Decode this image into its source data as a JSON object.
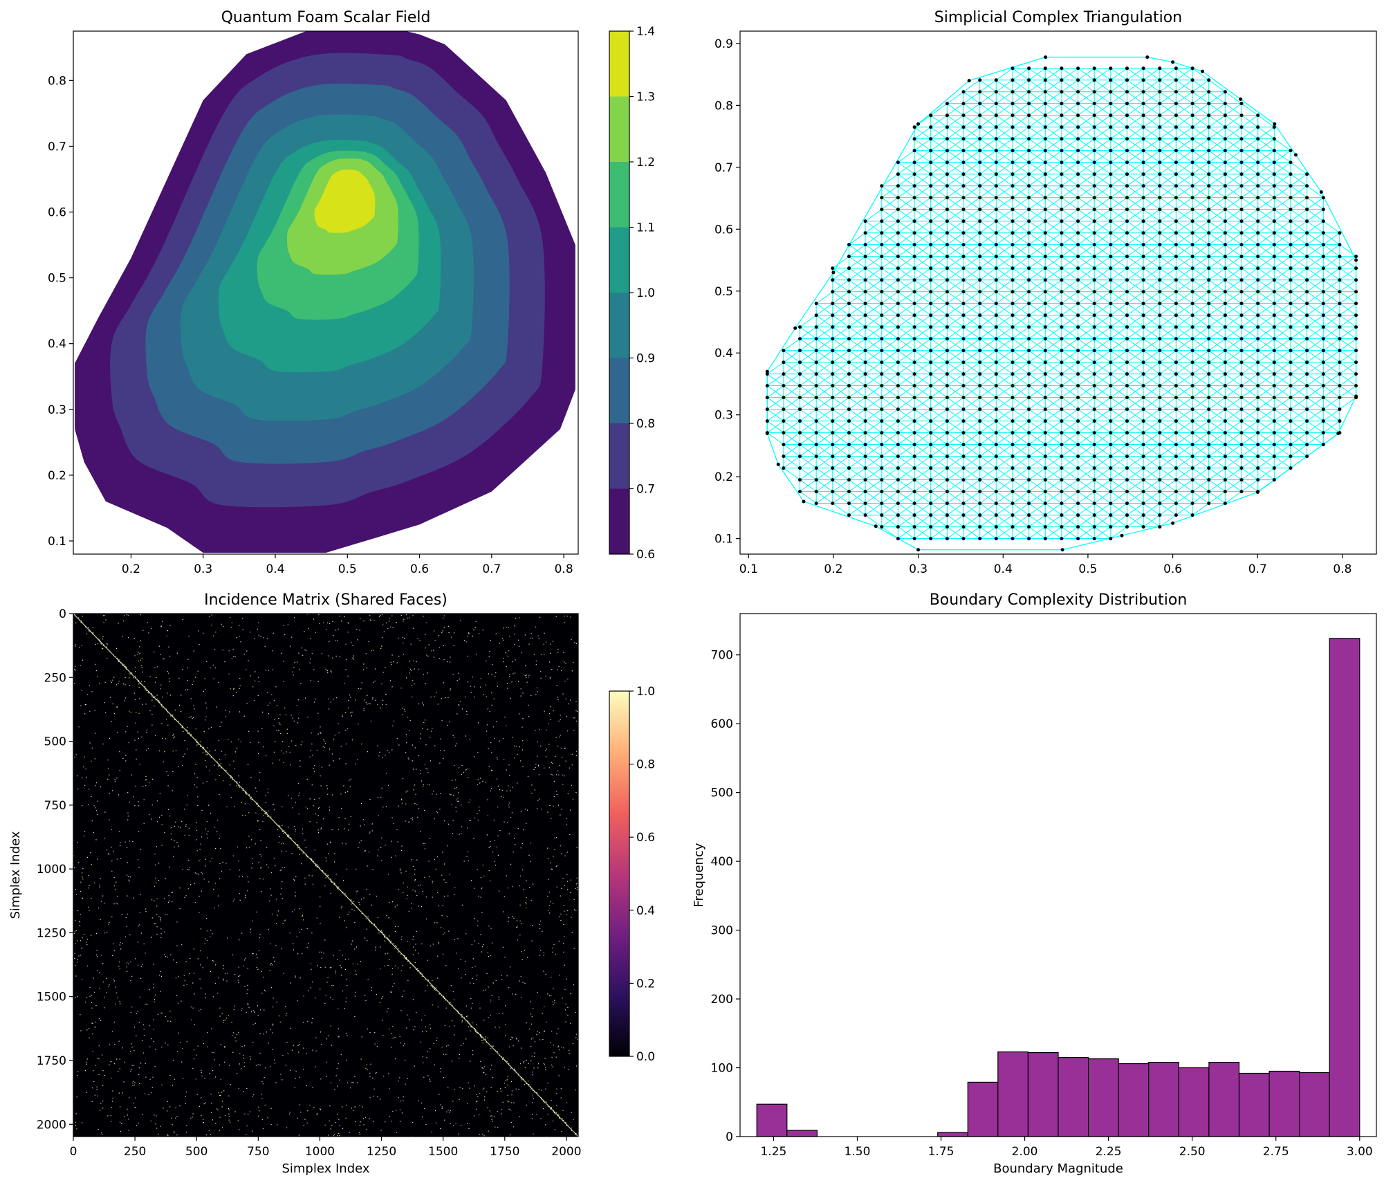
{
  "chart_data": [
    {
      "type": "contour",
      "title": "Quantum Foam Scalar Field",
      "xlabel": "",
      "ylabel": "",
      "xlim": [
        0.12,
        0.82
      ],
      "ylim": [
        0.08,
        0.875
      ],
      "x_ticks": [
        "0.2",
        "0.3",
        "0.4",
        "0.5",
        "0.6",
        "0.7",
        "0.8"
      ],
      "y_ticks": [
        "0.1",
        "0.2",
        "0.3",
        "0.4",
        "0.5",
        "0.6",
        "0.7",
        "0.8"
      ],
      "levels": [
        0.6,
        0.7,
        0.8,
        0.9,
        1.0,
        1.1,
        1.2,
        1.3,
        1.4
      ],
      "colorbar_ticks": [
        "0.6",
        "0.7",
        "0.8",
        "0.9",
        "1.0",
        "1.1",
        "1.2",
        "1.3",
        "1.4"
      ],
      "colors": [
        "#46126d",
        "#443b84",
        "#31668e",
        "#277f8e",
        "#1f9d89",
        "#3dbc73",
        "#84d44b",
        "#d7e219"
      ],
      "peak": {
        "x": 0.5,
        "y": 0.635,
        "value": 1.35
      },
      "colormap": "viridis"
    },
    {
      "type": "scatter",
      "title": "Simplicial Complex Triangulation",
      "xlabel": "",
      "ylabel": "",
      "xlim": [
        0.09,
        0.84
      ],
      "ylim": [
        0.075,
        0.92
      ],
      "x_ticks": [
        "0.1",
        "0.2",
        "0.3",
        "0.4",
        "0.5",
        "0.6",
        "0.7",
        "0.8"
      ],
      "y_ticks": [
        "0.1",
        "0.2",
        "0.3",
        "0.4",
        "0.5",
        "0.6",
        "0.7",
        "0.8",
        "0.9"
      ],
      "grid_x_range": [
        0.122,
        0.816
      ],
      "grid_y_range": [
        0.081,
        0.879
      ],
      "grid_columns": 37,
      "grid_rows": 43,
      "hull": [
        [
          0.122,
          0.27
        ],
        [
          0.135,
          0.22
        ],
        [
          0.165,
          0.16
        ],
        [
          0.25,
          0.12
        ],
        [
          0.3,
          0.082
        ],
        [
          0.47,
          0.082
        ],
        [
          0.54,
          0.105
        ],
        [
          0.6,
          0.125
        ],
        [
          0.7,
          0.175
        ],
        [
          0.795,
          0.27
        ],
        [
          0.816,
          0.33
        ],
        [
          0.816,
          0.55
        ],
        [
          0.775,
          0.66
        ],
        [
          0.745,
          0.72
        ],
        [
          0.72,
          0.77
        ],
        [
          0.68,
          0.81
        ],
        [
          0.635,
          0.855
        ],
        [
          0.6,
          0.87
        ],
        [
          0.57,
          0.878
        ],
        [
          0.45,
          0.878
        ],
        [
          0.36,
          0.84
        ],
        [
          0.3,
          0.77
        ],
        [
          0.2,
          0.53
        ],
        [
          0.155,
          0.44
        ],
        [
          0.122,
          0.37
        ]
      ],
      "edge_color": "#00ffff",
      "point_color": "#000000"
    },
    {
      "type": "heatmap",
      "title": "Incidence Matrix (Shared Faces)",
      "xlabel": "Simplex Index",
      "ylabel": "Simplex Index",
      "size": 2048,
      "x_ticks": [
        0,
        250,
        500,
        750,
        1000,
        1250,
        1500,
        1750,
        2000
      ],
      "y_ticks": [
        0,
        250,
        500,
        750,
        1000,
        1250,
        1500,
        1750,
        2000
      ],
      "colorbar_ticks": [
        "0.0",
        "0.2",
        "0.4",
        "0.6",
        "0.8",
        "1.0"
      ],
      "colormap": "magma",
      "colorbar_colors": [
        "#000004",
        "#2c115f",
        "#721f81",
        "#b73779",
        "#f1605d",
        "#feb078",
        "#fcfdbf"
      ],
      "structure": "sparse binary matrix with dense main diagonal and scattered off-diagonal entries"
    },
    {
      "type": "bar",
      "title": "Boundary Complexity Distribution",
      "xlabel": "Boundary Magnitude",
      "ylabel": "Frequency",
      "xlim": [
        1.15,
        3.05
      ],
      "ylim": [
        0,
        760
      ],
      "x_ticks": [
        "1.25",
        "1.50",
        "1.75",
        "2.00",
        "2.25",
        "2.50",
        "2.75",
        "3.00"
      ],
      "y_ticks": [
        0,
        100,
        200,
        300,
        400,
        500,
        600,
        700
      ],
      "bin_edges": [
        1.2,
        1.29,
        1.38,
        1.47,
        1.56,
        1.65,
        1.74,
        1.83,
        1.92,
        2.01,
        2.1,
        2.19,
        2.28,
        2.37,
        2.46,
        2.55,
        2.64,
        2.73,
        2.82,
        2.91,
        3.0
      ],
      "values": [
        47,
        9,
        0,
        0,
        0,
        0,
        6,
        79,
        123,
        122,
        115,
        113,
        106,
        108,
        100,
        108,
        92,
        95,
        93,
        724
      ],
      "bar_color": "#983098",
      "edge_color": "#000000"
    }
  ]
}
